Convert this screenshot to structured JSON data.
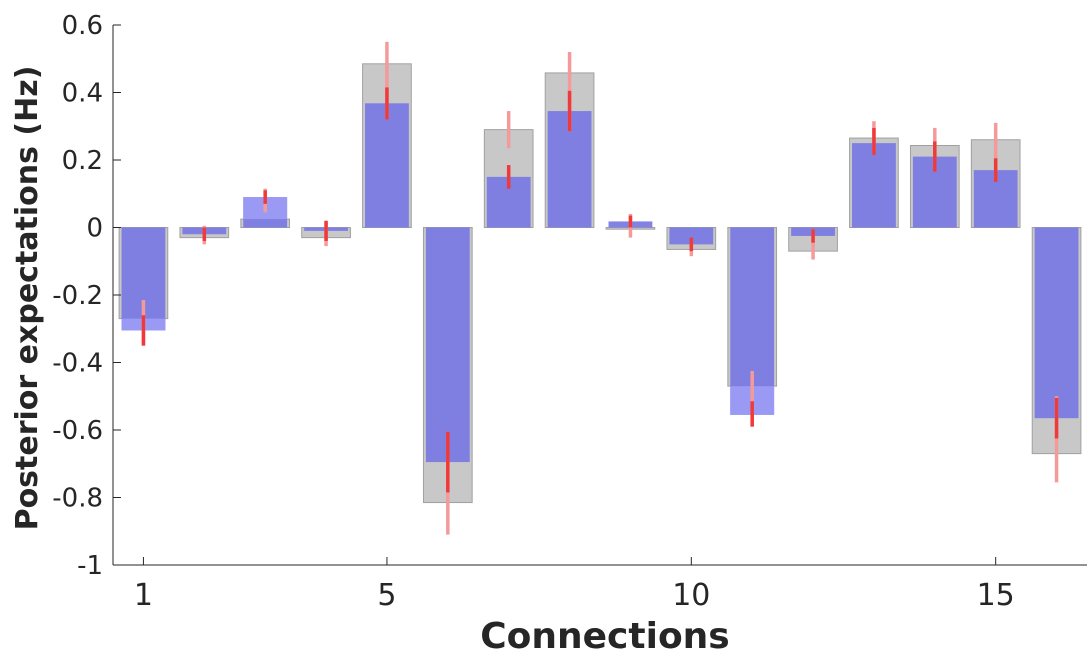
{
  "chart_data": {
    "type": "bar",
    "title": "",
    "xlabel": "Connections",
    "ylabel": "Posterior expectations (Hz)",
    "ylim": [
      -1,
      0.6
    ],
    "yticks": [
      -1,
      -0.8,
      -0.6,
      -0.4,
      -0.2,
      0,
      0.2,
      0.4,
      0.6
    ],
    "ytick_labels": [
      "-1",
      "-0.8",
      "-0.6",
      "-0.4",
      "-0.2",
      "0",
      "0.2",
      "0.4",
      "0.6"
    ],
    "xlim": [
      0.5,
      16.5
    ],
    "xticks": [
      1,
      5,
      10,
      15
    ],
    "xtick_labels": [
      "1",
      "5",
      "10",
      "15"
    ],
    "categories": [
      1,
      2,
      3,
      4,
      5,
      6,
      7,
      8,
      9,
      10,
      11,
      12,
      13,
      14,
      15,
      16
    ],
    "grid": false,
    "legend": "none",
    "colors": {
      "gray_bar": "#c8c8c8",
      "gray_edge": "#a0a0a0",
      "blue_bar": "#7b7be3",
      "blue_light": "#9a9af5",
      "ci_light": "#f59a9a",
      "ci_dark": "#ee3a3a"
    },
    "series": [
      {
        "values": [
          -0.27,
          -0.03,
          0.025,
          -0.03,
          0.485,
          -0.815,
          0.29,
          0.458,
          -0.005,
          -0.065,
          -0.47,
          -0.07,
          0.265,
          0.243,
          0.26,
          -0.67
        ],
        "ci_low": [
          -0.35,
          -0.05,
          0.045,
          -0.055,
          0.32,
          -0.91,
          0.235,
          0.285,
          -0.03,
          -0.085,
          -0.59,
          -0.095,
          0.215,
          0.165,
          0.135,
          -0.755
        ],
        "ci_high": [
          -0.215,
          0.005,
          0.115,
          0.015,
          0.55,
          -0.605,
          0.345,
          0.52,
          0.04,
          -0.045,
          -0.425,
          -0.005,
          0.315,
          0.295,
          0.31,
          -0.5
        ]
      },
      {
        "values": [
          -0.305,
          -0.02,
          0.09,
          -0.01,
          0.368,
          -0.695,
          0.15,
          0.345,
          0.018,
          -0.05,
          -0.555,
          -0.025,
          0.25,
          0.21,
          0.17,
          -0.565
        ],
        "ci_low": [
          -0.35,
          -0.04,
          0.07,
          -0.04,
          0.32,
          -0.785,
          0.115,
          0.285,
          0.0,
          -0.07,
          -0.59,
          -0.045,
          0.215,
          0.165,
          0.135,
          -0.625
        ],
        "ci_high": [
          -0.26,
          0.0,
          0.11,
          0.02,
          0.415,
          -0.605,
          0.185,
          0.405,
          0.035,
          -0.03,
          -0.515,
          -0.005,
          0.295,
          0.255,
          0.205,
          -0.505
        ]
      }
    ]
  }
}
